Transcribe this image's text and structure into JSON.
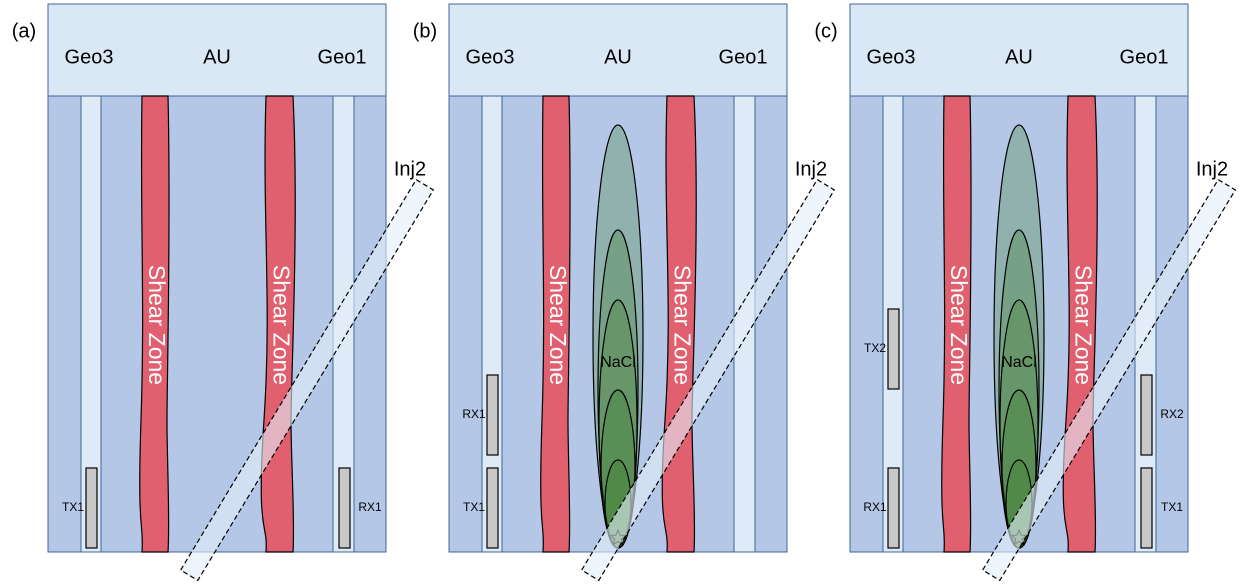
{
  "panels": [
    {
      "label": "(a)",
      "header": {
        "left": "Geo3",
        "center": "AU",
        "right": "Geo1"
      },
      "shear_zones": [
        "Shear Zone",
        "Shear Zone"
      ],
      "injection": "Inj2",
      "sensors": [
        {
          "label": "TX1"
        },
        {
          "label": "RX1"
        }
      ]
    },
    {
      "label": "(b)",
      "header": {
        "left": "Geo3",
        "center": "AU",
        "right": "Geo1"
      },
      "shear_zones": [
        "Shear Zone",
        "Shear Zone"
      ],
      "injection": "Inj2",
      "sensors": [
        {
          "label": "RX1"
        },
        {
          "label": "TX1"
        }
      ],
      "plume": "NaCl"
    },
    {
      "label": "(c)",
      "header": {
        "left": "Geo3",
        "center": "AU",
        "right": "Geo1"
      },
      "shear_zones": [
        "Shear Zone",
        "Shear Zone"
      ],
      "injection": "Inj2",
      "sensors": [
        {
          "label": "TX2"
        },
        {
          "label": "RX1"
        },
        {
          "label": "RX2"
        },
        {
          "label": "TX1"
        }
      ],
      "plume": "NaCl"
    }
  ]
}
